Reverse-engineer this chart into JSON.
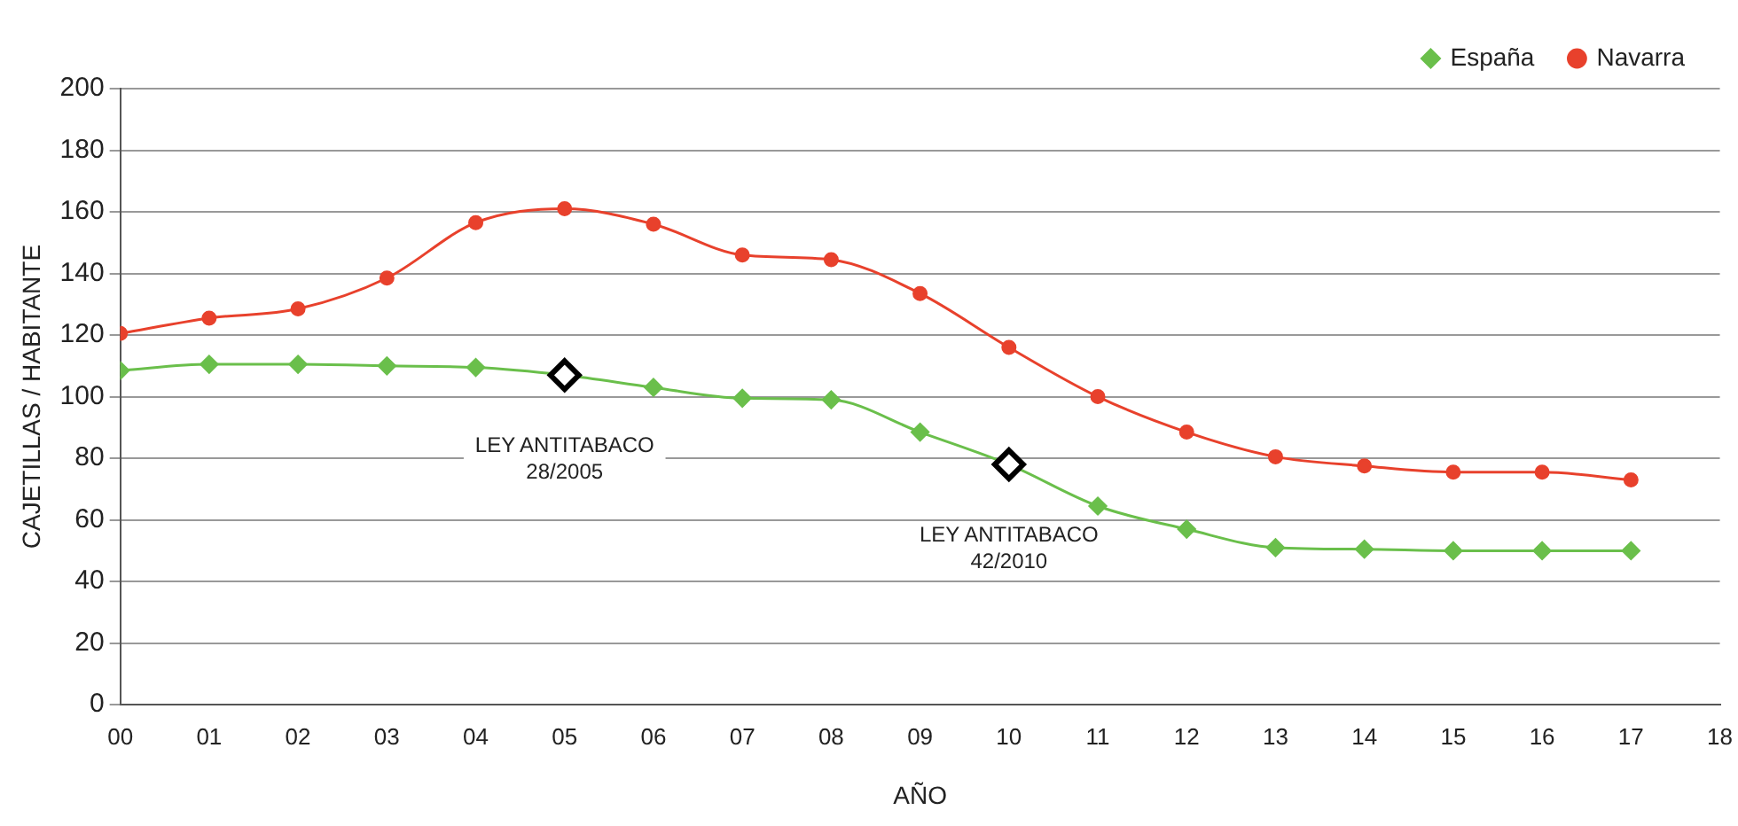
{
  "chart_data": {
    "type": "line",
    "xlabel": "AÑO",
    "ylabel": "CAJETILLAS / HABITANTE",
    "x": [
      0,
      1,
      2,
      3,
      4,
      5,
      6,
      7,
      8,
      9,
      10,
      11,
      12,
      13,
      14,
      15,
      16,
      17
    ],
    "series": [
      {
        "name": "España",
        "color": "#6abf4b",
        "marker": "diamond",
        "values": [
          108.5,
          110.5,
          110.5,
          110,
          109.5,
          107,
          103,
          99.5,
          99,
          88.5,
          78,
          64.5,
          57,
          51,
          50.5,
          50,
          50,
          50
        ]
      },
      {
        "name": "Navarra",
        "color": "#e8412c",
        "marker": "circle",
        "values": [
          120.5,
          125.5,
          128.5,
          138.5,
          156.5,
          161,
          156,
          146,
          144.5,
          133.5,
          116,
          100,
          88.5,
          80.5,
          77.5,
          75.5,
          75.5,
          73
        ]
      }
    ],
    "xlim": [
      0,
      18
    ],
    "xticks": [
      {
        "value": 0,
        "label": "00"
      },
      {
        "value": 1,
        "label": "01"
      },
      {
        "value": 2,
        "label": "02"
      },
      {
        "value": 3,
        "label": "03"
      },
      {
        "value": 4,
        "label": "04"
      },
      {
        "value": 5,
        "label": "05"
      },
      {
        "value": 6,
        "label": "06"
      },
      {
        "value": 7,
        "label": "07"
      },
      {
        "value": 8,
        "label": "08"
      },
      {
        "value": 9,
        "label": "09"
      },
      {
        "value": 10,
        "label": "10"
      },
      {
        "value": 11,
        "label": "11"
      },
      {
        "value": 12,
        "label": "12"
      },
      {
        "value": 13,
        "label": "13"
      },
      {
        "value": 14,
        "label": "14"
      },
      {
        "value": 15,
        "label": "15"
      },
      {
        "value": 16,
        "label": "16"
      },
      {
        "value": 17,
        "label": "17"
      },
      {
        "value": 18,
        "label": "18"
      }
    ],
    "ylim": [
      0,
      200
    ],
    "yticks": [
      0,
      20,
      40,
      60,
      80,
      100,
      120,
      140,
      160,
      180,
      200
    ],
    "grid": "y",
    "legend": "top right",
    "line_style": "solid",
    "annotations": [
      {
        "text": "LEY ANTITABACO\n28/2005",
        "x": 5,
        "y": 107
      },
      {
        "text": "LEY ANTITABACO\n42/2010",
        "x": 10,
        "y": 78
      }
    ]
  }
}
